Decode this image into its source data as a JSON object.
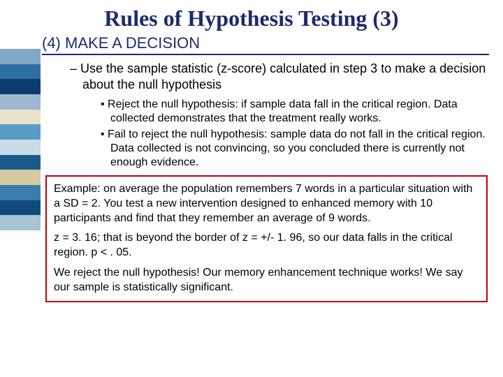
{
  "title": "Rules of Hypothesis Testing (3)",
  "step": {
    "num": "(4)",
    "label": "MAKE A DECISION"
  },
  "dash": "Use the sample statistic (z-score)  calculated in step 3 to make a decision about the null hypothesis",
  "bullets": [
    "Reject the null hypothesis: if sample data fall in the critical region. Data collected demonstrates that the treatment really works.",
    "Fail to reject the null hypothesis: sample data do not fall in the critical region.  Data collected is not convincing, so you concluded there is currently not enough evidence."
  ],
  "example": {
    "p1": "Example: on average the population remembers 7 words in a particular situation with a SD = 2.  You test a new intervention designed to enhanced memory with 10 participants and find that they remember an average of 9 words.",
    "p2": "z = 3. 16; that is beyond the border of z = +/- 1. 96, so our data falls in the critical region. p < . 05.",
    "p3": "We reject the null hypothesis! Our memory enhancement technique works!  We say our sample is statistically significant."
  },
  "sidebar_colors": [
    "#7fa8c9",
    "#2d6fa3",
    "#0a3d6b",
    "#9db8cf",
    "#e8e2c8",
    "#5a9bc4",
    "#c9dce8",
    "#1a5a8a",
    "#d6cba0",
    "#3a7dad",
    "#0f4a7a",
    "#a8c2d6"
  ],
  "colors": {
    "heading": "#1e2a6e",
    "example_border": "#c00000",
    "background": "#ffffff"
  },
  "fonts": {
    "title_family": "Times New Roman",
    "body_family": "Arial",
    "title_size_pt": 32,
    "heading_size_pt": 22,
    "dash_size_pt": 18,
    "bullet_size_pt": 16,
    "example_size_pt": 16
  }
}
